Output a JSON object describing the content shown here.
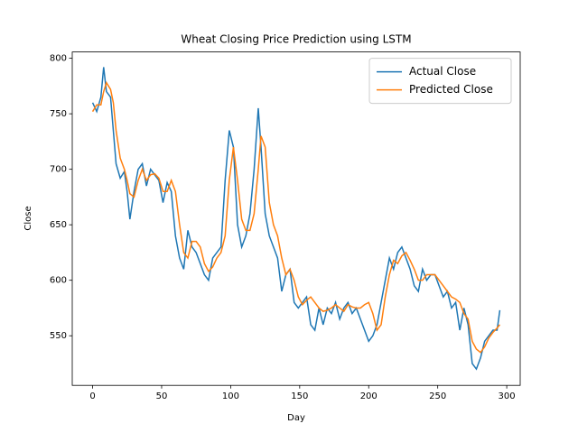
{
  "chart_data": {
    "type": "line",
    "title": "Wheat Closing Price Prediction using LSTM",
    "x_label": "Day",
    "y_label": "Close",
    "x": [
      0,
      3,
      6,
      8,
      10,
      13,
      15,
      17,
      20,
      23,
      25,
      27,
      30,
      33,
      36,
      39,
      42,
      45,
      48,
      51,
      54,
      57,
      60,
      63,
      66,
      69,
      72,
      75,
      78,
      81,
      84,
      87,
      90,
      93,
      96,
      99,
      102,
      105,
      108,
      111,
      114,
      117,
      120,
      122,
      125,
      128,
      131,
      134,
      137,
      140,
      143,
      146,
      149,
      152,
      155,
      158,
      161,
      164,
      167,
      170,
      173,
      176,
      179,
      182,
      185,
      188,
      191,
      194,
      197,
      200,
      203,
      206,
      209,
      212,
      215,
      218,
      221,
      224,
      227,
      230,
      233,
      236,
      239,
      242,
      245,
      248,
      251,
      254,
      257,
      260,
      263,
      266,
      269,
      272,
      275,
      278,
      281,
      284,
      287,
      290,
      293,
      295
    ],
    "series": [
      {
        "name": "Actual Close",
        "color": "#1f77b4",
        "values": [
          760,
          752,
          765,
          792,
          770,
          765,
          735,
          705,
          692,
          698,
          680,
          655,
          680,
          700,
          705,
          685,
          700,
          695,
          690,
          670,
          688,
          680,
          640,
          620,
          610,
          645,
          630,
          625,
          615,
          605,
          600,
          620,
          625,
          630,
          690,
          735,
          720,
          650,
          630,
          640,
          660,
          700,
          755,
          720,
          660,
          640,
          630,
          620,
          590,
          605,
          610,
          580,
          575,
          580,
          585,
          560,
          555,
          575,
          560,
          575,
          570,
          580,
          565,
          575,
          580,
          570,
          575,
          565,
          555,
          545,
          550,
          560,
          580,
          600,
          620,
          610,
          625,
          630,
          620,
          610,
          595,
          590,
          610,
          600,
          605,
          605,
          595,
          585,
          590,
          575,
          580,
          555,
          575,
          560,
          525,
          520,
          530,
          545,
          550,
          555,
          555,
          573
        ]
      },
      {
        "name": "Predicted Close",
        "color": "#ff7f0e",
        "values": [
          752,
          758,
          758,
          770,
          778,
          772,
          760,
          735,
          710,
          700,
          690,
          678,
          675,
          690,
          700,
          690,
          695,
          696,
          692,
          680,
          680,
          690,
          680,
          650,
          625,
          620,
          635,
          635,
          630,
          615,
          608,
          612,
          620,
          625,
          640,
          690,
          720,
          690,
          655,
          645,
          645,
          660,
          700,
          730,
          720,
          670,
          650,
          640,
          620,
          605,
          610,
          600,
          585,
          578,
          582,
          585,
          580,
          575,
          572,
          573,
          575,
          578,
          575,
          572,
          578,
          576,
          575,
          575,
          578,
          580,
          570,
          555,
          560,
          585,
          605,
          618,
          615,
          622,
          625,
          618,
          610,
          600,
          600,
          605,
          605,
          605,
          600,
          595,
          590,
          585,
          583,
          580,
          570,
          565,
          545,
          538,
          535,
          540,
          548,
          553,
          557,
          560
        ]
      }
    ],
    "xlim": [
      -14.75,
      309.75
    ],
    "ylim": [
      505.3,
      805.7
    ],
    "xticks": [
      0,
      50,
      100,
      150,
      200,
      250,
      300
    ],
    "yticks": [
      550,
      600,
      650,
      700,
      750,
      800
    ],
    "legend": "upper right"
  }
}
